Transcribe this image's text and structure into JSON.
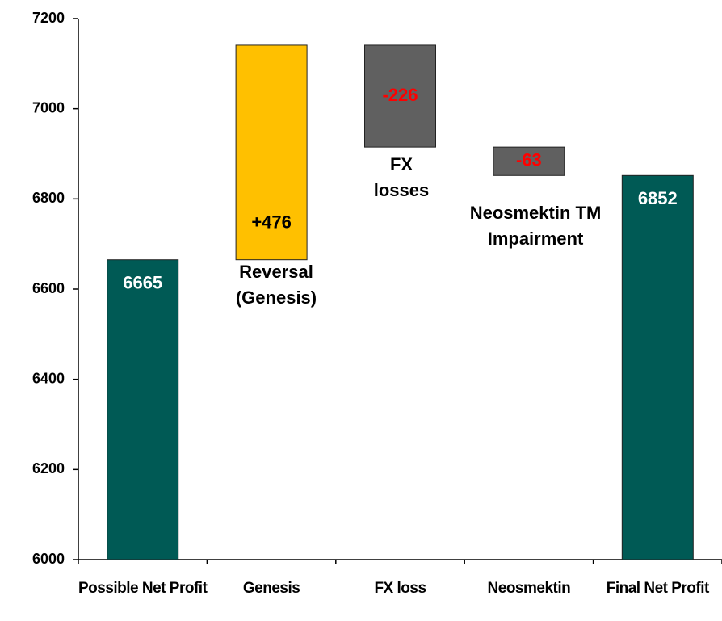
{
  "chart_data": {
    "type": "waterfall",
    "categories": [
      "Possible Net Profit",
      "Genesis",
      "FX loss",
      "Neosmektin",
      "Final Net Profit"
    ],
    "values": [
      6665,
      476,
      -226,
      -63,
      6852
    ],
    "value_labels": [
      "6665",
      "+476",
      "-226",
      "-63",
      "6852"
    ],
    "measures": [
      "absolute",
      "relative",
      "relative",
      "relative",
      "total"
    ],
    "colors": [
      "#005a55",
      "#ffc000",
      "#606060",
      "#606060",
      "#005a55"
    ],
    "value_label_colors": [
      "#ffffff",
      "#000000",
      "#ff0000",
      "#ff0000",
      "#ffffff"
    ],
    "annotations": [
      [
        "Reversal",
        "(Genesis)"
      ],
      [
        "FX",
        "losses"
      ],
      [
        "Neosmektin TM",
        "Impairment"
      ]
    ],
    "ylim": [
      6000,
      7200
    ],
    "yticks": [
      6000,
      6200,
      6400,
      6600,
      6800,
      7000,
      7200
    ]
  }
}
